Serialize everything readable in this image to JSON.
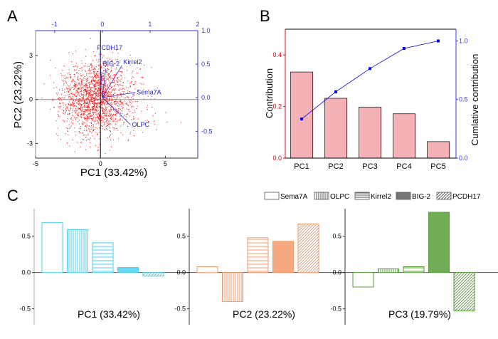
{
  "chart_data": [
    {
      "panel": "A",
      "type": "scatter",
      "title": "",
      "xlabel": "PC1 (33.42%)",
      "ylabel": "PC2 (23.22%)",
      "xlim": [
        -5,
        7.5
      ],
      "ylim": [
        -4,
        4.7
      ],
      "x_ticks": [
        "-5",
        "0",
        "5"
      ],
      "y_ticks": [
        "-3",
        "0",
        "3"
      ],
      "top_axis": {
        "lim": [
          -1.4,
          2.0
        ],
        "ticks": [
          "-1",
          "0",
          "1",
          "2"
        ]
      },
      "right_axis": {
        "lim": [
          -0.9,
          1.0
        ],
        "ticks": [
          "-0.5",
          "0.0",
          "0.5",
          "1.0"
        ]
      },
      "points_description": "approximately 2000 sample scores, roughly centered near (-0.5, 0.3), spread x in [-3, 7], y in [-3.5, 4.5]",
      "point_count": 2000,
      "point_color": "#ff0000",
      "axis_color": "#3333cc",
      "loadings": [
        {
          "name": "Sema7A",
          "pc1": 0.69,
          "pc2": 0.08
        },
        {
          "name": "OLPC",
          "pc1": 0.59,
          "pc2": -0.4
        },
        {
          "name": "Kirrel2",
          "pc1": 0.41,
          "pc2": 0.48
        },
        {
          "name": "BIG-2",
          "pc1": 0.07,
          "pc2": 0.43
        },
        {
          "name": "PCDH17",
          "pc1": -0.05,
          "pc2": 0.67
        }
      ]
    },
    {
      "panel": "B",
      "type": "bar",
      "categories": [
        "PC1",
        "PC2",
        "PC3",
        "PC4",
        "PC5"
      ],
      "series": [
        {
          "name": "Contribution",
          "values": [
            0.334,
            0.232,
            0.198,
            0.172,
            0.064
          ],
          "color": "#f4b2b6",
          "axis": "left"
        },
        {
          "name": "Cumlative contribution",
          "type": "line",
          "values": [
            0.334,
            0.566,
            0.764,
            0.936,
            1.0
          ],
          "color": "#0000ff",
          "axis": "right"
        }
      ],
      "ylabel": "Contribution",
      "ylabel_right": "Cumlative contribution",
      "ylim": [
        0,
        0.5
      ],
      "ylim_right": [
        0,
        1.1
      ],
      "y_ticks": [
        "0.0",
        "0.2",
        "0.4"
      ],
      "y_ticks_right": [
        "0.0",
        "0.5",
        "1.0"
      ],
      "left_axis_color": "#e0000a",
      "right_axis_color": "#3333ff"
    },
    {
      "panel": "C",
      "type": "bar",
      "legend": [
        "Sema7A",
        "OLPC",
        "Kirrel2",
        "BIG-2",
        "PCDH17"
      ],
      "legend_placement": "top-right",
      "ylim": [
        -0.72,
        0.88
      ],
      "y_ticks": [
        "-0.5",
        "0.0",
        "0.5"
      ],
      "subplots": [
        {
          "label": "PC1 (33.42%)",
          "color": "#4fd0ee",
          "values": [
            0.69,
            0.59,
            0.41,
            0.07,
            -0.05
          ]
        },
        {
          "label": "PC2 (23.22%)",
          "color": "#f59a6a",
          "values": [
            0.08,
            -0.4,
            0.48,
            0.43,
            0.67
          ]
        },
        {
          "label": "PC3 (19.79%)",
          "color": "#5a9e3a",
          "values": [
            -0.2,
            0.05,
            0.08,
            0.83,
            -0.53
          ]
        }
      ]
    }
  ],
  "panel_labels": [
    "A",
    "B",
    "C"
  ]
}
